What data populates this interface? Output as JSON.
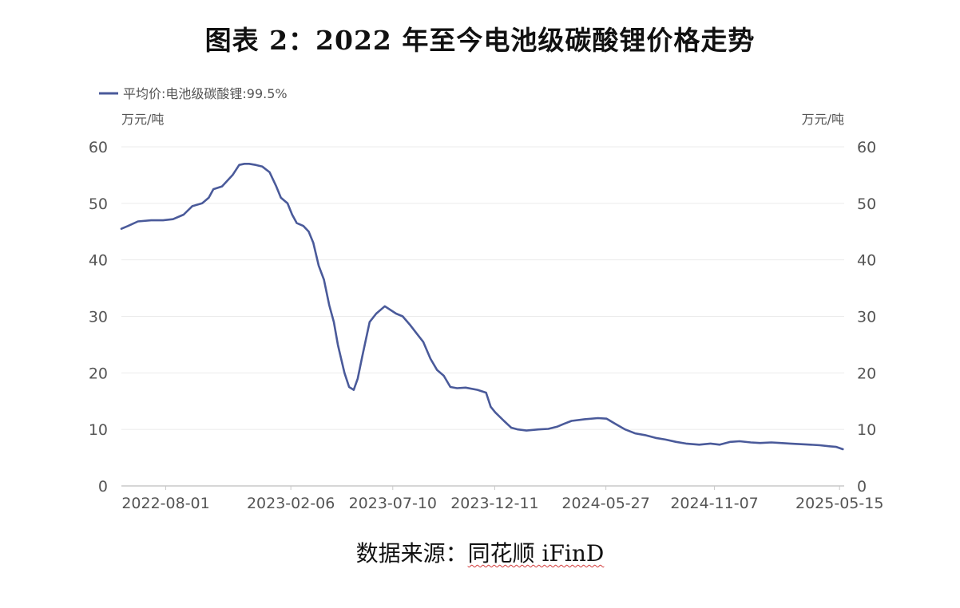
{
  "title": "图表 2：2022 年至今电池级碳酸锂价格走势",
  "source": {
    "prefix": "数据来源：",
    "name": "同花顺 iFinD"
  },
  "colors": {
    "series": "#4a5a9a",
    "grid": "#ebebeb",
    "axis": "#c8c8c8",
    "text": "#555555"
  },
  "chart_data": {
    "type": "line",
    "title": "",
    "legend": {
      "position": "top-left"
    },
    "ylabel_left": "万元/吨",
    "ylabel_right": "万元/吨",
    "ylim": [
      0,
      60
    ],
    "y_ticks": [
      0,
      10,
      20,
      30,
      40,
      50,
      60
    ],
    "grid": true,
    "x_ticks": [
      "2022-08-01",
      "2023-02-06",
      "2023-07-10",
      "2023-12-11",
      "2024-05-27",
      "2024-11-07",
      "2025-05-15"
    ],
    "x_range": [
      "2022-05-26",
      "2025-05-22"
    ],
    "series": [
      {
        "name": "平均价:电池级碳酸锂:99.5%",
        "x": [
          "2022-05-26",
          "2022-06-05",
          "2022-06-20",
          "2022-07-10",
          "2022-07-28",
          "2022-08-12",
          "2022-08-28",
          "2022-09-10",
          "2022-09-25",
          "2022-10-05",
          "2022-10-12",
          "2022-10-25",
          "2022-11-10",
          "2022-11-20",
          "2022-11-28",
          "2022-12-05",
          "2022-12-15",
          "2022-12-25",
          "2023-01-05",
          "2023-01-15",
          "2023-01-22",
          "2023-02-01",
          "2023-02-08",
          "2023-02-15",
          "2023-02-25",
          "2023-03-05",
          "2023-03-12",
          "2023-03-20",
          "2023-03-28",
          "2023-04-05",
          "2023-04-12",
          "2023-04-18",
          "2023-04-22",
          "2023-04-28",
          "2023-05-05",
          "2023-05-12",
          "2023-05-18",
          "2023-05-25",
          "2023-06-05",
          "2023-06-15",
          "2023-06-28",
          "2023-07-15",
          "2023-07-25",
          "2023-08-05",
          "2023-08-15",
          "2023-08-25",
          "2023-09-05",
          "2023-09-15",
          "2023-09-25",
          "2023-10-05",
          "2023-10-15",
          "2023-10-28",
          "2023-11-15",
          "2023-11-28",
          "2023-12-05",
          "2023-12-12",
          "2023-12-25",
          "2024-01-05",
          "2024-01-15",
          "2024-01-28",
          "2024-02-15",
          "2024-03-01",
          "2024-03-15",
          "2024-03-25",
          "2024-04-05",
          "2024-04-25",
          "2024-05-15",
          "2024-05-28",
          "2024-06-10",
          "2024-06-25",
          "2024-07-10",
          "2024-07-25",
          "2024-08-10",
          "2024-08-25",
          "2024-09-10",
          "2024-09-25",
          "2024-10-15",
          "2024-11-01",
          "2024-11-15",
          "2024-12-01",
          "2024-12-15",
          "2025-01-01",
          "2025-01-15",
          "2025-02-01",
          "2025-02-15",
          "2025-03-01",
          "2025-03-15",
          "2025-04-01",
          "2025-04-15",
          "2025-05-01",
          "2025-05-10",
          "2025-05-20"
        ],
        "values": [
          45.5,
          46.0,
          46.8,
          47.0,
          47.0,
          47.2,
          48.0,
          49.5,
          50.0,
          51.0,
          52.5,
          53.0,
          55.0,
          56.8,
          57.0,
          57.0,
          56.8,
          56.5,
          55.5,
          53.0,
          51.0,
          50.0,
          48.0,
          46.5,
          46.0,
          45.0,
          43.0,
          39.0,
          36.5,
          32.0,
          29.0,
          25.0,
          23.0,
          20.0,
          17.5,
          17.0,
          19.0,
          23.0,
          29.0,
          30.5,
          31.8,
          30.5,
          30.0,
          28.5,
          27.0,
          25.5,
          22.5,
          20.5,
          19.5,
          17.5,
          17.3,
          17.4,
          17.0,
          16.5,
          14.0,
          13.0,
          11.5,
          10.3,
          10.0,
          9.8,
          10.0,
          10.1,
          10.5,
          11.0,
          11.5,
          11.8,
          12.0,
          11.9,
          11.0,
          10.0,
          9.3,
          9.0,
          8.5,
          8.2,
          7.8,
          7.5,
          7.3,
          7.5,
          7.3,
          7.8,
          7.9,
          7.7,
          7.6,
          7.7,
          7.6,
          7.5,
          7.4,
          7.3,
          7.2,
          7.0,
          6.9,
          6.5
        ]
      }
    ]
  }
}
